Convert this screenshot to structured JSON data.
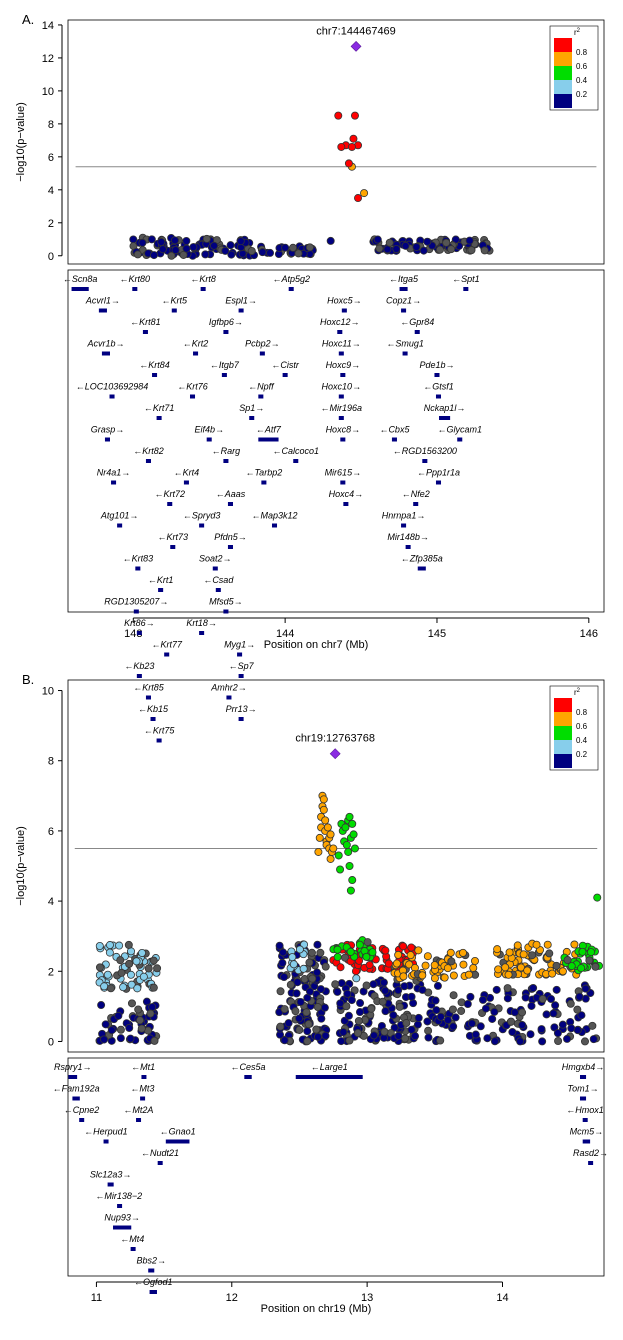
{
  "colors": {
    "r2_1.0": "#ff0000",
    "r2_0.8": "#ffa500",
    "r2_0.6": "#00dd00",
    "r2_0.4": "#87ceeb",
    "r2_0.2": "#000080",
    "lead": "#8a2be2",
    "gene": "#000080",
    "dot_edge": "#333333"
  },
  "chart_data": [
    {
      "panel": "A.",
      "type": "scatter",
      "lead_label": "chr7:144467469",
      "xlabel": "Position on chr7 (Mb)",
      "ylabel": "−log10(p−value)",
      "x_ticks": [
        143,
        144,
        145,
        146
      ],
      "y_ticks": [
        0,
        2,
        4,
        6,
        8,
        10,
        12,
        14
      ],
      "xlim": [
        142.57,
        146.1
      ],
      "ylim": [
        -0.5,
        14.3
      ],
      "grid": false,
      "significance_line": 5.4,
      "legend": {
        "title": "r2",
        "labels": [
          "0.8",
          "0.6",
          "0.4",
          "0.2"
        ],
        "position": "top-right"
      },
      "lead": {
        "x": 144.467,
        "y": 12.7
      },
      "points": {
        "red": [
          [
            144.35,
            8.5
          ],
          [
            144.46,
            8.5
          ],
          [
            144.45,
            7.1
          ],
          [
            144.4,
            6.7
          ],
          [
            144.48,
            6.7
          ],
          [
            144.37,
            6.6
          ],
          [
            144.44,
            6.6
          ],
          [
            144.42,
            5.6
          ],
          [
            144.48,
            3.5
          ]
        ],
        "orange": [
          [
            144.44,
            5.4
          ],
          [
            144.52,
            3.8
          ]
        ],
        "clusters": [
          {
            "x0": 143.0,
            "x1": 143.8,
            "y0": 0.0,
            "y1": 1.1,
            "n": 95,
            "mix": 0.25
          },
          {
            "x0": 143.8,
            "x1": 144.2,
            "y0": 0.1,
            "y1": 0.6,
            "n": 30,
            "mix": 0.3
          },
          {
            "x0": 144.58,
            "x1": 145.35,
            "y0": 0.3,
            "y1": 1.0,
            "n": 90,
            "mix": 0.35
          }
        ],
        "single_navy": [
          [
            144.3,
            0.9
          ]
        ]
      },
      "genes": [
        {
          "name": "Scn8a",
          "s": 142.6,
          "e": 142.7,
          "dir": "-"
        },
        {
          "name": "Krt80",
          "s": 143.0,
          "e": 143.02,
          "dir": "-"
        },
        {
          "name": "Krt5",
          "s": 143.26,
          "e": 143.28,
          "dir": "-"
        },
        {
          "name": "Krt8",
          "s": 143.45,
          "e": 143.47,
          "dir": "-"
        },
        {
          "name": "Espl1",
          "s": 143.7,
          "e": 143.72,
          "dir": "+"
        },
        {
          "name": "Atp5g2",
          "s": 144.03,
          "e": 144.05,
          "dir": "-"
        },
        {
          "name": "Hoxc5",
          "s": 144.38,
          "e": 144.4,
          "dir": "+"
        },
        {
          "name": "Itga5",
          "s": 144.76,
          "e": 144.8,
          "dir": "-"
        },
        {
          "name": "Spt1",
          "s": 145.18,
          "e": 145.2,
          "dir": "-"
        },
        {
          "name": "Acvrl1",
          "s": 142.78,
          "e": 142.82,
          "dir": "+"
        },
        {
          "name": "Krt81",
          "s": 143.07,
          "e": 143.09,
          "dir": "-"
        },
        {
          "name": "Krt2",
          "s": 143.4,
          "e": 143.42,
          "dir": "-"
        },
        {
          "name": "Igfbp6",
          "s": 143.6,
          "e": 143.62,
          "dir": "+"
        },
        {
          "name": "Pcbp2",
          "s": 143.84,
          "e": 143.86,
          "dir": "+"
        },
        {
          "name": "Hoxc12",
          "s": 144.35,
          "e": 144.37,
          "dir": "+"
        },
        {
          "name": "Copz1",
          "s": 144.77,
          "e": 144.79,
          "dir": "+"
        },
        {
          "name": "Acvr1b",
          "s": 142.8,
          "e": 142.84,
          "dir": "+"
        },
        {
          "name": "Krt84",
          "s": 143.13,
          "e": 143.15,
          "dir": "-"
        },
        {
          "name": "Krt76",
          "s": 143.38,
          "e": 143.4,
          "dir": "-"
        },
        {
          "name": "Itgb7",
          "s": 143.59,
          "e": 143.61,
          "dir": "-"
        },
        {
          "name": "Npff",
          "s": 143.83,
          "e": 143.85,
          "dir": "-"
        },
        {
          "name": "Hoxc11",
          "s": 144.36,
          "e": 144.38,
          "dir": "+"
        },
        {
          "name": "Gpr84",
          "s": 144.86,
          "e": 144.88,
          "dir": "-"
        },
        {
          "name": "LOC103692984",
          "s": 142.85,
          "e": 142.87,
          "dir": "-"
        },
        {
          "name": "Krt71",
          "s": 143.16,
          "e": 143.18,
          "dir": "-"
        },
        {
          "name": "Eif4b",
          "s": 143.49,
          "e": 143.51,
          "dir": "+"
        },
        {
          "name": "Sp1",
          "s": 143.77,
          "e": 143.79,
          "dir": "+"
        },
        {
          "name": "Cistr",
          "s": 143.99,
          "e": 144.01,
          "dir": "-"
        },
        {
          "name": "Smug1",
          "s": 144.78,
          "e": 144.8,
          "dir": "-"
        },
        {
          "name": "Pde1b",
          "s": 144.99,
          "e": 145.01,
          "dir": "+"
        },
        {
          "name": "Grasp",
          "s": 142.82,
          "e": 142.84,
          "dir": "+"
        },
        {
          "name": "Krt82",
          "s": 143.09,
          "e": 143.11,
          "dir": "-"
        },
        {
          "name": "Krt4",
          "s": 143.34,
          "e": 143.36,
          "dir": "-"
        },
        {
          "name": "Rarg",
          "s": 143.6,
          "e": 143.62,
          "dir": "-"
        },
        {
          "name": "Atf7",
          "s": 143.83,
          "e": 143.95,
          "dir": "-"
        },
        {
          "name": "Hoxc10",
          "s": 144.36,
          "e": 144.38,
          "dir": "+"
        },
        {
          "name": "Gtsf1",
          "s": 145.0,
          "e": 145.02,
          "dir": "-"
        },
        {
          "name": "Nr4a1",
          "s": 142.86,
          "e": 142.88,
          "dir": "+"
        },
        {
          "name": "Krt72",
          "s": 143.23,
          "e": 143.25,
          "dir": "-"
        },
        {
          "name": "Spryd3",
          "s": 143.44,
          "e": 143.46,
          "dir": "-"
        },
        {
          "name": "Tarbp2",
          "s": 143.85,
          "e": 143.87,
          "dir": "-"
        },
        {
          "name": "Mir196a",
          "s": 144.36,
          "e": 144.38,
          "dir": "-"
        },
        {
          "name": "Nckap1l",
          "s": 145.02,
          "e": 145.08,
          "dir": "+"
        },
        {
          "name": "Atg101",
          "s": 142.9,
          "e": 142.92,
          "dir": "+"
        },
        {
          "name": "Krt73",
          "s": 143.25,
          "e": 143.27,
          "dir": "-"
        },
        {
          "name": "Soat2",
          "s": 143.53,
          "e": 143.55,
          "dir": "+"
        },
        {
          "name": "Calcoco1",
          "s": 144.06,
          "e": 144.08,
          "dir": "-"
        },
        {
          "name": "Cbx5",
          "s": 144.71,
          "e": 144.73,
          "dir": "-"
        },
        {
          "name": "Krt83",
          "s": 143.02,
          "e": 143.04,
          "dir": "-"
        },
        {
          "name": "Krt1",
          "s": 143.17,
          "e": 143.19,
          "dir": "-"
        },
        {
          "name": "Csad",
          "s": 143.55,
          "e": 143.57,
          "dir": "-"
        },
        {
          "name": "Hoxc9",
          "s": 144.37,
          "e": 144.39,
          "dir": "+"
        },
        {
          "name": "RGD1563200",
          "s": 144.91,
          "e": 144.93,
          "dir": "-"
        },
        {
          "name": "RGD1305207",
          "s": 143.01,
          "e": 143.03,
          "dir": "+"
        },
        {
          "name": "Krt18",
          "s": 143.44,
          "e": 143.46,
          "dir": "+"
        },
        {
          "name": "Aaas",
          "s": 143.63,
          "e": 143.65,
          "dir": "-"
        },
        {
          "name": "Ppp1r1a",
          "s": 145.0,
          "e": 145.02,
          "dir": "-"
        },
        {
          "name": "Krt86",
          "s": 143.03,
          "e": 143.05,
          "dir": "+"
        },
        {
          "name": "Krt77",
          "s": 143.21,
          "e": 143.23,
          "dir": "-"
        },
        {
          "name": "Mfsd5",
          "s": 143.6,
          "e": 143.62,
          "dir": "+"
        },
        {
          "name": "Hoxc8",
          "s": 144.37,
          "e": 144.39,
          "dir": "+"
        },
        {
          "name": "Mir615",
          "s": 144.37,
          "e": 144.39,
          "dir": "+"
        },
        {
          "name": "Glycam1",
          "s": 145.14,
          "e": 145.16,
          "dir": "-"
        },
        {
          "name": "Kb23",
          "s": 143.03,
          "e": 143.05,
          "dir": "-"
        },
        {
          "name": "Pfdn5",
          "s": 143.63,
          "e": 143.65,
          "dir": "+"
        },
        {
          "name": "Hoxc4",
          "s": 144.39,
          "e": 144.41,
          "dir": "+"
        },
        {
          "name": "Krt85",
          "s": 143.09,
          "e": 143.11,
          "dir": "-"
        },
        {
          "name": "Myg1",
          "s": 143.69,
          "e": 143.71,
          "dir": "+"
        },
        {
          "name": "Hnrnpa1",
          "s": 144.77,
          "e": 144.79,
          "dir": "+"
        },
        {
          "name": "Kb15",
          "s": 143.12,
          "e": 143.14,
          "dir": "-"
        },
        {
          "name": "Sp7",
          "s": 143.7,
          "e": 143.72,
          "dir": "-"
        },
        {
          "name": "Nfe2",
          "s": 144.85,
          "e": 144.87,
          "dir": "-"
        },
        {
          "name": "Krt75",
          "s": 143.16,
          "e": 143.18,
          "dir": "-"
        },
        {
          "name": "Amhr2",
          "s": 143.62,
          "e": 143.64,
          "dir": "+"
        },
        {
          "name": "Mir148b",
          "s": 144.8,
          "e": 144.82,
          "dir": "+"
        },
        {
          "name": "Prr13",
          "s": 143.7,
          "e": 143.72,
          "dir": "+"
        },
        {
          "name": "Zfp385a",
          "s": 144.88,
          "e": 144.92,
          "dir": "-"
        },
        {
          "name": "Map3k12",
          "s": 143.92,
          "e": 143.94,
          "dir": "-"
        }
      ]
    },
    {
      "panel": "B.",
      "type": "scatter",
      "lead_label": "chr19:12763768",
      "xlabel": "Position on chr19 (Mb)",
      "ylabel": "−log10(p−value)",
      "x_ticks": [
        11,
        12,
        13,
        14
      ],
      "y_ticks": [
        0,
        2,
        4,
        6,
        8,
        10
      ],
      "xlim": [
        10.79,
        14.75
      ],
      "ylim": [
        -0.3,
        10.3
      ],
      "grid": false,
      "significance_line": 5.5,
      "legend": {
        "title": "r2",
        "labels": [
          "0.8",
          "0.6",
          "0.4",
          "0.2"
        ],
        "position": "top-right"
      },
      "lead": {
        "x": 12.764,
        "y": 8.2
      },
      "points": {
        "orange_peak": [
          [
            12.64,
            5.4
          ],
          [
            12.65,
            5.8
          ],
          [
            12.66,
            6.1
          ],
          [
            12.66,
            6.4
          ],
          [
            12.67,
            6.7
          ],
          [
            12.67,
            7.0
          ],
          [
            12.68,
            6.9
          ],
          [
            12.68,
            6.6
          ],
          [
            12.69,
            6.3
          ],
          [
            12.69,
            6.0
          ],
          [
            12.7,
            5.7
          ],
          [
            12.7,
            5.6
          ],
          [
            12.71,
            6.1
          ],
          [
            12.72,
            5.5
          ],
          [
            12.72,
            5.8
          ],
          [
            12.73,
            5.2
          ],
          [
            12.73,
            5.9
          ],
          [
            12.74,
            5.4
          ],
          [
            12.75,
            5.5
          ]
        ],
        "green_peak": [
          [
            12.79,
            5.3
          ],
          [
            12.8,
            4.9
          ],
          [
            12.81,
            6.2
          ],
          [
            12.82,
            6.0
          ],
          [
            12.83,
            5.7
          ],
          [
            12.84,
            6.1
          ],
          [
            12.85,
            5.6
          ],
          [
            12.86,
            6.3
          ],
          [
            12.86,
            5.4
          ],
          [
            12.87,
            6.4
          ],
          [
            12.87,
            5.0
          ],
          [
            12.88,
            5.8
          ],
          [
            12.88,
            4.3
          ],
          [
            12.89,
            4.6
          ],
          [
            12.89,
            6.2
          ],
          [
            12.9,
            5.9
          ],
          [
            12.91,
            5.5
          ],
          [
            14.7,
            4.1
          ]
        ],
        "clusters": [
          {
            "x0": 11.02,
            "x1": 11.45,
            "y0": 1.5,
            "y1": 2.8,
            "n": 70,
            "color": "r2_0.4",
            "mix": 0.3
          },
          {
            "x0": 11.02,
            "x1": 11.45,
            "y0": 0.0,
            "y1": 1.2,
            "n": 55,
            "color": "r2_0.2",
            "mix": 0.25
          },
          {
            "x0": 12.35,
            "x1": 12.7,
            "y0": 0.0,
            "y1": 2.8,
            "n": 140,
            "color": "r2_0.2",
            "mix": 0.35
          },
          {
            "x0": 12.42,
            "x1": 12.55,
            "y0": 2.0,
            "y1": 2.8,
            "n": 16,
            "color": "r2_0.4",
            "mix": 0.1
          },
          {
            "x0": 12.75,
            "x1": 13.35,
            "y0": 2.0,
            "y1": 2.8,
            "n": 60,
            "color": "r2_1.0",
            "mix": 0.1
          },
          {
            "x0": 12.75,
            "x1": 13.05,
            "y0": 2.4,
            "y1": 2.9,
            "n": 30,
            "color": "r2_0.6",
            "mix": 0.1
          },
          {
            "x0": 12.75,
            "x1": 13.4,
            "y0": 0.0,
            "y1": 1.8,
            "n": 130,
            "color": "r2_0.2",
            "mix": 0.3
          },
          {
            "x0": 13.2,
            "x1": 13.8,
            "y0": 1.8,
            "y1": 2.6,
            "n": 60,
            "color": "r2_0.8",
            "mix": 0.2
          },
          {
            "x0": 13.4,
            "x1": 14.7,
            "y0": 0.0,
            "y1": 1.6,
            "n": 140,
            "color": "r2_0.2",
            "mix": 0.3
          },
          {
            "x0": 13.95,
            "x1": 14.55,
            "y0": 1.9,
            "y1": 2.8,
            "n": 75,
            "color": "r2_0.8",
            "mix": 0.15
          },
          {
            "x0": 14.45,
            "x1": 14.72,
            "y0": 2.0,
            "y1": 2.8,
            "n": 30,
            "color": "r2_0.6",
            "mix": 0.1
          }
        ],
        "single_lightblue": [
          [
            12.92,
            1.8
          ]
        ]
      },
      "genes": [
        {
          "name": "Rspry1",
          "s": 10.8,
          "e": 10.85,
          "dir": "+"
        },
        {
          "name": "Mt1",
          "s": 11.34,
          "e": 11.35,
          "dir": "-"
        },
        {
          "name": "Ces5a",
          "s": 12.1,
          "e": 12.14,
          "dir": "-"
        },
        {
          "name": "Large1",
          "s": 12.48,
          "e": 12.96,
          "dir": "-"
        },
        {
          "name": "Hmgxb4",
          "s": 14.58,
          "e": 14.61,
          "dir": "+"
        },
        {
          "name": "Fam192a",
          "s": 10.83,
          "e": 10.87,
          "dir": "-"
        },
        {
          "name": "Mt3",
          "s": 11.33,
          "e": 11.35,
          "dir": "-"
        },
        {
          "name": "Tom1",
          "s": 14.58,
          "e": 14.61,
          "dir": "+"
        },
        {
          "name": "Cpne2",
          "s": 10.88,
          "e": 10.9,
          "dir": "-"
        },
        {
          "name": "Mt2A",
          "s": 11.3,
          "e": 11.32,
          "dir": "-"
        },
        {
          "name": "Hmox1",
          "s": 14.6,
          "e": 14.62,
          "dir": "-"
        },
        {
          "name": "Herpud1",
          "s": 11.06,
          "e": 11.08,
          "dir": "-"
        },
        {
          "name": "Nudt21",
          "s": 11.46,
          "e": 11.48,
          "dir": "-"
        },
        {
          "name": "Mcm5",
          "s": 14.6,
          "e": 14.64,
          "dir": "+"
        },
        {
          "name": "Slc12a3",
          "s": 11.09,
          "e": 11.12,
          "dir": "+"
        },
        {
          "name": "Gnao1",
          "s": 11.52,
          "e": 11.68,
          "dir": "-"
        },
        {
          "name": "Rasd2",
          "s": 14.64,
          "e": 14.66,
          "dir": "+"
        },
        {
          "name": "Mir138−2",
          "s": 11.16,
          "e": 11.17,
          "dir": "-"
        },
        {
          "name": "Nup93",
          "s": 11.13,
          "e": 11.25,
          "dir": "+"
        },
        {
          "name": "Mt4",
          "s": 11.26,
          "e": 11.27,
          "dir": "-"
        },
        {
          "name": "Bbs2",
          "s": 11.39,
          "e": 11.42,
          "dir": "+"
        },
        {
          "name": "Ogfod1",
          "s": 11.4,
          "e": 11.44,
          "dir": "-"
        }
      ]
    }
  ]
}
